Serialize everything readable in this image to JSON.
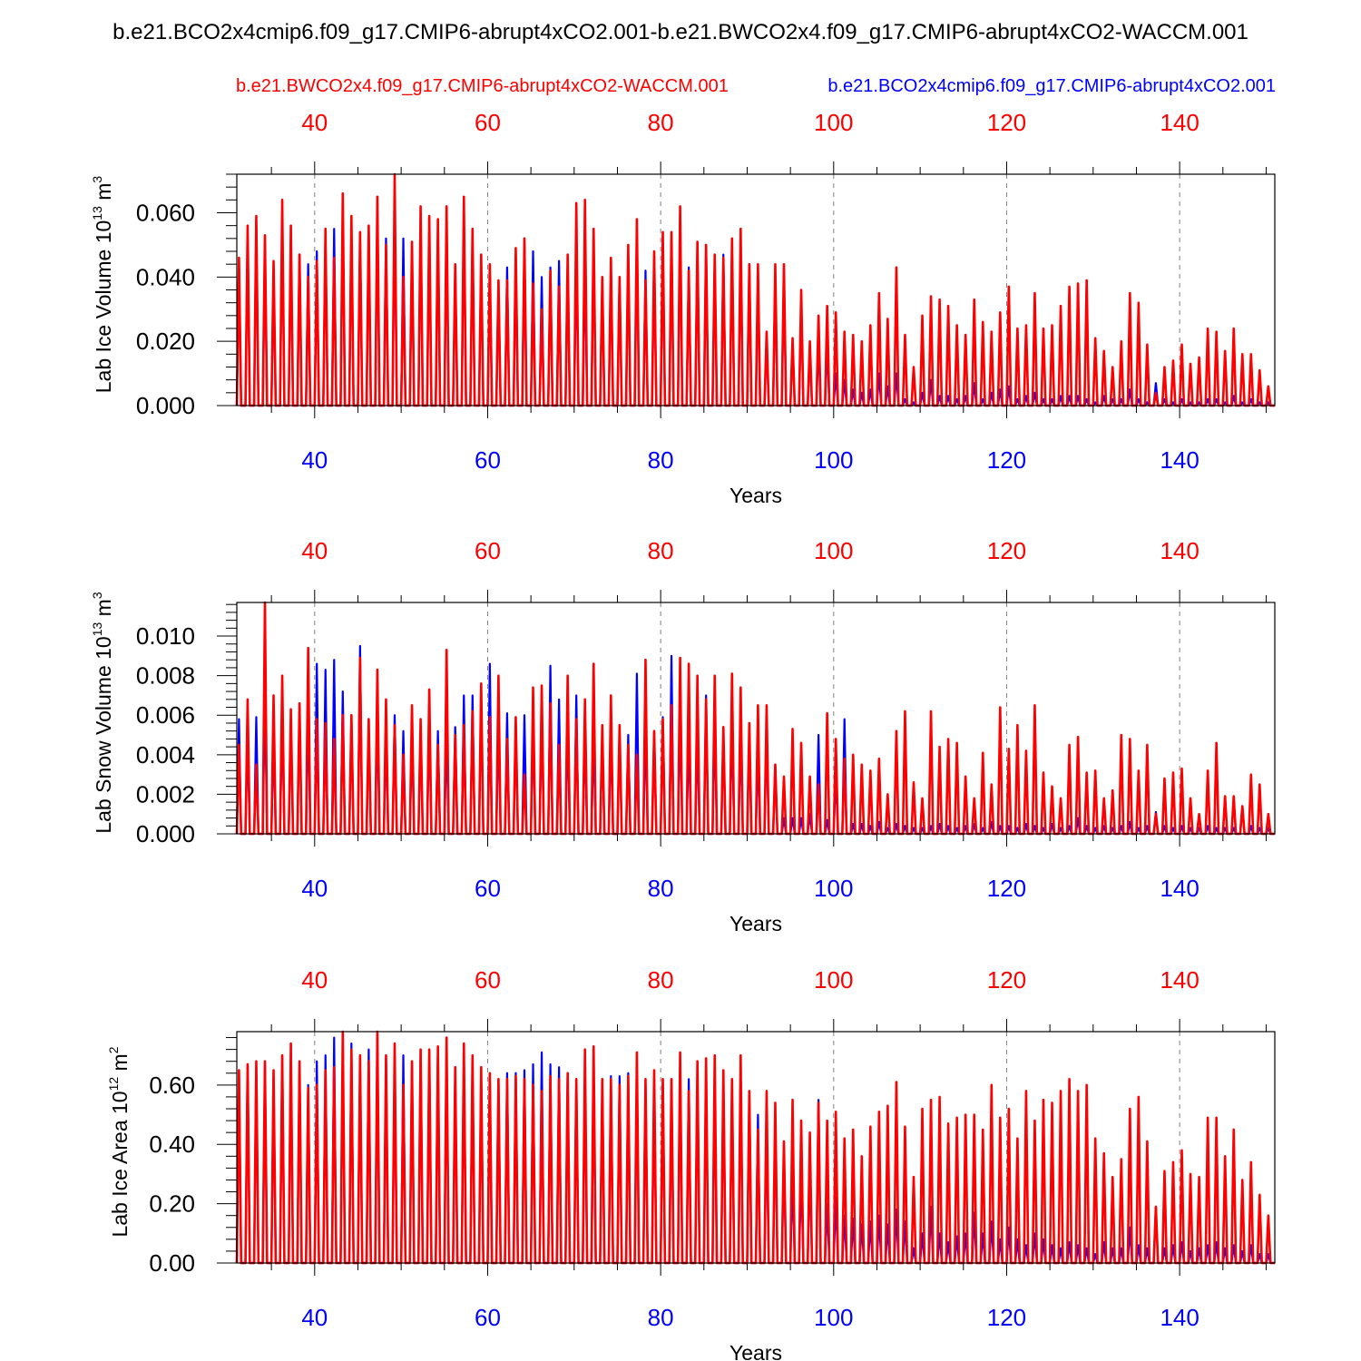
{
  "figure": {
    "title": "b.e21.BCO2x4cmip6.f09_g17.CMIP6-abrupt4xCO2.001-b.e21.BWCO2x4.f09_g17.CMIP6-abrupt4xCO2-WACCM.001",
    "case_red": "b.e21.BWCO2x4.f09_g17.CMIP6-abrupt4xCO2-WACCM.001",
    "case_blue": "b.e21.BCO2x4cmip6.f09_g17.CMIP6-abrupt4xCO2.001",
    "colors": {
      "red": "#ff0000",
      "blue": "#0000ff",
      "frame": "#000000",
      "grid": "#808080"
    }
  },
  "chart_data": [
    {
      "type": "line",
      "title": "",
      "xlabel": "Years",
      "ylabel": "Lab Ice Volume",
      "units_mantissa": "10",
      "units_exponent": "13",
      "units_unit": "m",
      "units_power": "3",
      "xlim": [
        31,
        151
      ],
      "ylim": [
        0,
        0.072
      ],
      "x_ticks": [
        "40",
        "60",
        "80",
        "100",
        "120",
        "140"
      ],
      "y_ticks": [
        "0.000",
        "0.020",
        "0.040",
        "0.060"
      ],
      "x_start": 31,
      "series": [
        {
          "name": "b.e21.BWCO2x4.f09_g17.CMIP6-abrupt4xCO2-WACCM.001",
          "color": "#ff0000",
          "values": [
            0.046,
            0.056,
            0.059,
            0.053,
            0.045,
            0.064,
            0.056,
            0.047,
            0.04,
            0.045,
            0.055,
            0.046,
            0.066,
            0.059,
            0.054,
            0.056,
            0.065,
            0.05,
            0.072,
            0.04,
            0.051,
            0.062,
            0.059,
            0.058,
            0.062,
            0.044,
            0.065,
            0.055,
            0.047,
            0.044,
            0.039,
            0.039,
            0.049,
            0.052,
            0.038,
            0.03,
            0.042,
            0.037,
            0.047,
            0.063,
            0.064,
            0.055,
            0.04,
            0.046,
            0.04,
            0.05,
            0.058,
            0.039,
            0.048,
            0.054,
            0.054,
            0.062,
            0.042,
            0.051,
            0.05,
            0.047,
            0.046,
            0.052,
            0.055,
            0.044,
            0.044,
            0.023,
            0.044,
            0.044,
            0.021,
            0.036,
            0.02,
            0.028,
            0.031,
            0.029,
            0.023,
            0.022,
            0.02,
            0.025,
            0.035,
            0.027,
            0.043,
            0.022,
            0.012,
            0.028,
            0.034,
            0.033,
            0.031,
            0.025,
            0.022,
            0.033,
            0.026,
            0.023,
            0.029,
            0.037,
            0.024,
            0.025,
            0.035,
            0.024,
            0.025,
            0.031,
            0.037,
            0.038,
            0.039,
            0.021,
            0.017,
            0.012,
            0.02,
            0.035,
            0.032,
            0.019,
            0.004,
            0.012,
            0.014,
            0.019,
            0.013,
            0.015,
            0.024,
            0.023,
            0.017,
            0.024,
            0.016,
            0.016,
            0.011,
            0.006
          ]
        },
        {
          "name": "b.e21.BCO2x4cmip6.f09_g17.CMIP6-abrupt4xCO2.001",
          "color": "#0000ff",
          "values": [
            0.045,
            0.054,
            0.057,
            0.05,
            0.04,
            0.06,
            0.05,
            0.047,
            0.044,
            0.048,
            0.053,
            0.055,
            0.061,
            0.055,
            0.052,
            0.055,
            0.061,
            0.052,
            0.062,
            0.052,
            0.048,
            0.058,
            0.055,
            0.055,
            0.054,
            0.042,
            0.06,
            0.052,
            0.044,
            0.042,
            0.038,
            0.043,
            0.047,
            0.05,
            0.048,
            0.04,
            0.043,
            0.045,
            0.044,
            0.047,
            0.044,
            0.05,
            0.038,
            0.043,
            0.04,
            0.048,
            0.053,
            0.042,
            0.047,
            0.05,
            0.051,
            0.056,
            0.043,
            0.05,
            0.05,
            0.045,
            0.047,
            0.05,
            0.046,
            0.044,
            0.04,
            0.02,
            0.04,
            0.042,
            0.019,
            0.031,
            0.016,
            0.019,
            0.019,
            0.01,
            0.008,
            0.005,
            0.004,
            0.005,
            0.01,
            0.006,
            0.01,
            0.002,
            0.001,
            0.004,
            0.008,
            0.003,
            0.003,
            0.002,
            0.003,
            0.007,
            0.002,
            0.004,
            0.005,
            0.006,
            0.002,
            0.003,
            0.004,
            0.002,
            0.002,
            0.003,
            0.003,
            0.003,
            0.002,
            0.001,
            0.003,
            0.002,
            0.002,
            0.005,
            0.002,
            0.001,
            0.007,
            0.002,
            0.001,
            0.002,
            0.001,
            0.001,
            0.002,
            0.002,
            0.001,
            0.003,
            0.001,
            0.002,
            0.001,
            0.001
          ]
        }
      ]
    },
    {
      "type": "line",
      "title": "",
      "xlabel": "Years",
      "ylabel": "Lab Snow Volume",
      "units_mantissa": "10",
      "units_exponent": "13",
      "units_unit": "m",
      "units_power": "3",
      "xlim": [
        31,
        151
      ],
      "ylim": [
        0,
        0.0117
      ],
      "x_ticks": [
        "40",
        "60",
        "80",
        "100",
        "120",
        "140"
      ],
      "y_ticks": [
        "0.000",
        "0.002",
        "0.004",
        "0.006",
        "0.008",
        "0.010"
      ],
      "x_start": 31,
      "series": [
        {
          "name": "b.e21.BWCO2x4.f09_g17.CMIP6-abrupt4xCO2-WACCM.001",
          "color": "#ff0000",
          "values": [
            0.0045,
            0.0068,
            0.0035,
            0.0117,
            0.007,
            0.008,
            0.0063,
            0.0066,
            0.0094,
            0.0058,
            0.0056,
            0.0048,
            0.006,
            0.006,
            0.0089,
            0.0058,
            0.0083,
            0.0068,
            0.0055,
            0.004,
            0.0065,
            0.0058,
            0.0073,
            0.0045,
            0.0093,
            0.005,
            0.0055,
            0.0062,
            0.0076,
            0.0059,
            0.008,
            0.0048,
            0.0059,
            0.003,
            0.0074,
            0.0075,
            0.0066,
            0.0045,
            0.008,
            0.0058,
            0.0068,
            0.0086,
            0.0055,
            0.007,
            0.0055,
            0.0045,
            0.004,
            0.0088,
            0.0052,
            0.0058,
            0.0065,
            0.0089,
            0.0086,
            0.008,
            0.0068,
            0.008,
            0.0054,
            0.0081,
            0.0074,
            0.0056,
            0.0065,
            0.0065,
            0.0035,
            0.0029,
            0.0053,
            0.0046,
            0.0029,
            0.0025,
            0.0061,
            0.0048,
            0.0038,
            0.004,
            0.0035,
            0.0032,
            0.0038,
            0.002,
            0.0052,
            0.0062,
            0.0026,
            0.0018,
            0.0062,
            0.0044,
            0.0048,
            0.0046,
            0.0029,
            0.0018,
            0.0041,
            0.0025,
            0.0064,
            0.0043,
            0.0055,
            0.0042,
            0.0065,
            0.0031,
            0.0024,
            0.0018,
            0.0045,
            0.0049,
            0.0031,
            0.0032,
            0.0018,
            0.0022,
            0.005,
            0.0048,
            0.0032,
            0.0045,
            0.001,
            0.0028,
            0.0031,
            0.0033,
            0.0018,
            0.001,
            0.0032,
            0.0046,
            0.0019,
            0.0019,
            0.0014,
            0.003,
            0.0025,
            0.001
          ]
        },
        {
          "name": "b.e21.BCO2x4cmip6.f09_g17.CMIP6-abrupt4xCO2.001",
          "color": "#0000ff",
          "values": [
            0.0058,
            0.0048,
            0.0059,
            0.007,
            0.005,
            0.006,
            0.0055,
            0.0062,
            0.006,
            0.0086,
            0.0083,
            0.0088,
            0.0072,
            0.006,
            0.0095,
            0.0052,
            0.006,
            0.005,
            0.006,
            0.0052,
            0.005,
            0.0052,
            0.0055,
            0.0052,
            0.005,
            0.0054,
            0.007,
            0.007,
            0.0065,
            0.0086,
            0.0055,
            0.0061,
            0.0055,
            0.006,
            0.0055,
            0.0058,
            0.0085,
            0.0068,
            0.0055,
            0.007,
            0.005,
            0.005,
            0.0048,
            0.005,
            0.0052,
            0.005,
            0.0081,
            0.0055,
            0.0052,
            0.0059,
            0.009,
            0.006,
            0.005,
            0.005,
            0.007,
            0.0055,
            0.005,
            0.0055,
            0.005,
            0.0045,
            0.004,
            0.005,
            0.0035,
            0.0008,
            0.0008,
            0.0008,
            0.001,
            0.005,
            0.0007,
            0.003,
            0.0058,
            0.0005,
            0.0005,
            0.0004,
            0.0006,
            0.0003,
            0.0005,
            0.0004,
            0.0003,
            0.0003,
            0.0004,
            0.0005,
            0.0004,
            0.0003,
            0.0004,
            0.0005,
            0.0003,
            0.0006,
            0.0004,
            0.0004,
            0.0003,
            0.0005,
            0.0004,
            0.0003,
            0.0005,
            0.0003,
            0.0004,
            0.0008,
            0.0004,
            0.0003,
            0.0004,
            0.0003,
            0.0004,
            0.0006,
            0.0003,
            0.0004,
            0.0011,
            0.0004,
            0.0003,
            0.0004,
            0.0003,
            0.0003,
            0.0004,
            0.0003,
            0.0003,
            0.0003,
            0.0014,
            0.0004,
            0.0003,
            0.0003
          ]
        }
      ]
    },
    {
      "type": "line",
      "title": "",
      "xlabel": "Years",
      "ylabel": "Lab Ice Area",
      "units_mantissa": "10",
      "units_exponent": "12",
      "units_unit": "m",
      "units_power": "2",
      "xlim": [
        31,
        151
      ],
      "ylim": [
        0,
        0.78
      ],
      "x_ticks": [
        "40",
        "60",
        "80",
        "100",
        "120",
        "140"
      ],
      "y_ticks": [
        "0.00",
        "0.20",
        "0.40",
        "0.60"
      ],
      "x_start": 31,
      "series": [
        {
          "name": "b.e21.BWCO2x4.f09_g17.CMIP6-abrupt4xCO2-WACCM.001",
          "color": "#ff0000",
          "values": [
            0.65,
            0.67,
            0.68,
            0.68,
            0.65,
            0.7,
            0.74,
            0.68,
            0.59,
            0.6,
            0.65,
            0.66,
            0.78,
            0.72,
            0.7,
            0.68,
            0.78,
            0.7,
            0.74,
            0.6,
            0.68,
            0.72,
            0.72,
            0.73,
            0.76,
            0.66,
            0.74,
            0.7,
            0.66,
            0.64,
            0.62,
            0.62,
            0.63,
            0.62,
            0.6,
            0.58,
            0.63,
            0.62,
            0.64,
            0.62,
            0.72,
            0.73,
            0.62,
            0.62,
            0.6,
            0.63,
            0.71,
            0.62,
            0.65,
            0.62,
            0.62,
            0.71,
            0.58,
            0.68,
            0.69,
            0.7,
            0.65,
            0.62,
            0.7,
            0.58,
            0.45,
            0.58,
            0.54,
            0.41,
            0.55,
            0.48,
            0.44,
            0.54,
            0.48,
            0.51,
            0.42,
            0.45,
            0.36,
            0.46,
            0.51,
            0.53,
            0.61,
            0.46,
            0.29,
            0.52,
            0.55,
            0.56,
            0.47,
            0.49,
            0.5,
            0.5,
            0.45,
            0.6,
            0.49,
            0.52,
            0.42,
            0.58,
            0.48,
            0.55,
            0.54,
            0.58,
            0.62,
            0.58,
            0.6,
            0.42,
            0.37,
            0.29,
            0.35,
            0.52,
            0.56,
            0.41,
            0.19,
            0.31,
            0.34,
            0.38,
            0.3,
            0.29,
            0.49,
            0.49,
            0.36,
            0.45,
            0.28,
            0.34,
            0.23,
            0.16
          ]
        },
        {
          "name": "b.e21.BCO2x4cmip6.f09_g17.CMIP6-abrupt4xCO2.001",
          "color": "#0000ff",
          "values": [
            0.65,
            0.67,
            0.66,
            0.67,
            0.63,
            0.7,
            0.71,
            0.66,
            0.6,
            0.68,
            0.7,
            0.76,
            0.7,
            0.74,
            0.68,
            0.72,
            0.72,
            0.69,
            0.7,
            0.7,
            0.67,
            0.72,
            0.71,
            0.72,
            0.72,
            0.65,
            0.7,
            0.68,
            0.64,
            0.63,
            0.62,
            0.64,
            0.64,
            0.65,
            0.67,
            0.71,
            0.67,
            0.66,
            0.64,
            0.62,
            0.62,
            0.6,
            0.6,
            0.63,
            0.63,
            0.64,
            0.63,
            0.6,
            0.62,
            0.61,
            0.6,
            0.66,
            0.62,
            0.65,
            0.63,
            0.58,
            0.62,
            0.6,
            0.61,
            0.57,
            0.5,
            0.45,
            0.49,
            0.36,
            0.29,
            0.3,
            0.32,
            0.55,
            0.2,
            0.22,
            0.16,
            0.15,
            0.13,
            0.14,
            0.16,
            0.13,
            0.18,
            0.14,
            0.05,
            0.1,
            0.19,
            0.1,
            0.07,
            0.09,
            0.1,
            0.17,
            0.1,
            0.14,
            0.08,
            0.12,
            0.08,
            0.06,
            0.1,
            0.08,
            0.06,
            0.05,
            0.07,
            0.06,
            0.05,
            0.03,
            0.07,
            0.05,
            0.05,
            0.12,
            0.06,
            0.05,
            0.19,
            0.05,
            0.06,
            0.07,
            0.04,
            0.05,
            0.06,
            0.07,
            0.05,
            0.06,
            0.04,
            0.06,
            0.03,
            0.03
          ]
        }
      ]
    }
  ]
}
